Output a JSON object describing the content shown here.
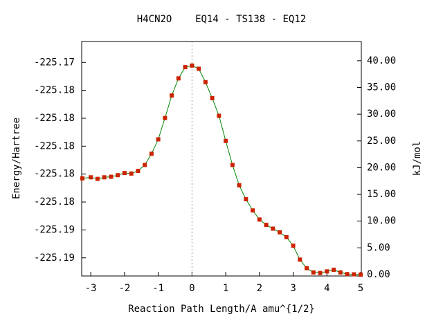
{
  "chart_data": {
    "type": "line",
    "title": "H4CN2O    EQ14 - TS138 - EQ12",
    "x_label": "Reaction Path Length/A amu^{1/2}",
    "y_label": "Energy/Hartree",
    "y2_label": "kJ/mol",
    "x": [
      -3.25,
      -3.0,
      -2.8,
      -2.6,
      -2.4,
      -2.2,
      -2.0,
      -1.8,
      -1.6,
      -1.4,
      -1.2,
      -1.0,
      -0.8,
      -0.6,
      -0.4,
      -0.2,
      0,
      0.2,
      0.4,
      0.6,
      0.8,
      1.0,
      1.2,
      1.4,
      1.6,
      1.8,
      2.0,
      2.2,
      2.4,
      2.6,
      2.8,
      3.0,
      3.2,
      3.4,
      3.6,
      3.8,
      4.0,
      4.2,
      4.4,
      4.6,
      4.8,
      5.0
    ],
    "series": [
      {
        "color": "#008800",
        "marker_color": "#cc2200",
        "axis": "y2",
        "values": [
          18.0,
          18.2,
          17.9,
          18.2,
          18.3,
          18.6,
          19.0,
          18.9,
          19.4,
          20.5,
          22.6,
          25.3,
          29.3,
          33.5,
          36.7,
          38.8,
          39.1,
          38.5,
          36.0,
          33.0,
          29.7,
          25.0,
          20.5,
          16.7,
          14.1,
          12.0,
          10.3,
          9.3,
          8.6,
          7.9,
          7.0,
          5.4,
          2.8,
          1.2,
          0.4,
          0.3,
          0.6,
          0.9,
          0.4,
          0.1,
          0.05,
          0.0
        ]
      }
    ],
    "xlim": [
      -3.27,
      5.02
    ],
    "xticks": [
      -3,
      -2,
      -1,
      0,
      1,
      2,
      3,
      4,
      5
    ],
    "ylim": [
      -225.1893,
      -225.1725
    ],
    "yticks": [
      {
        "value": -225.188,
        "label": "-225.19"
      },
      {
        "value": -225.186,
        "label": "-225.19"
      },
      {
        "value": -225.184,
        "label": "-225.18"
      },
      {
        "value": -225.182,
        "label": "-225.18"
      },
      {
        "value": -225.18,
        "label": "-225.18"
      },
      {
        "value": -225.178,
        "label": "-225.18"
      },
      {
        "value": -225.176,
        "label": "-225.18"
      },
      {
        "value": -225.174,
        "label": "-225.17"
      }
    ],
    "y2lim": [
      -0.26,
      43.6
    ],
    "y2ticks": [
      {
        "value": 0,
        "label": "0.00"
      },
      {
        "value": 5,
        "label": "5.00"
      },
      {
        "value": 10,
        "label": "10.00"
      },
      {
        "value": 15,
        "label": "15.00"
      },
      {
        "value": 20,
        "label": "20.00"
      },
      {
        "value": 25,
        "label": "25.00"
      },
      {
        "value": 30,
        "label": "30.00"
      },
      {
        "value": 35,
        "label": "35.00"
      },
      {
        "value": 40,
        "label": "40.00"
      }
    ],
    "ts_line_x": 0
  }
}
